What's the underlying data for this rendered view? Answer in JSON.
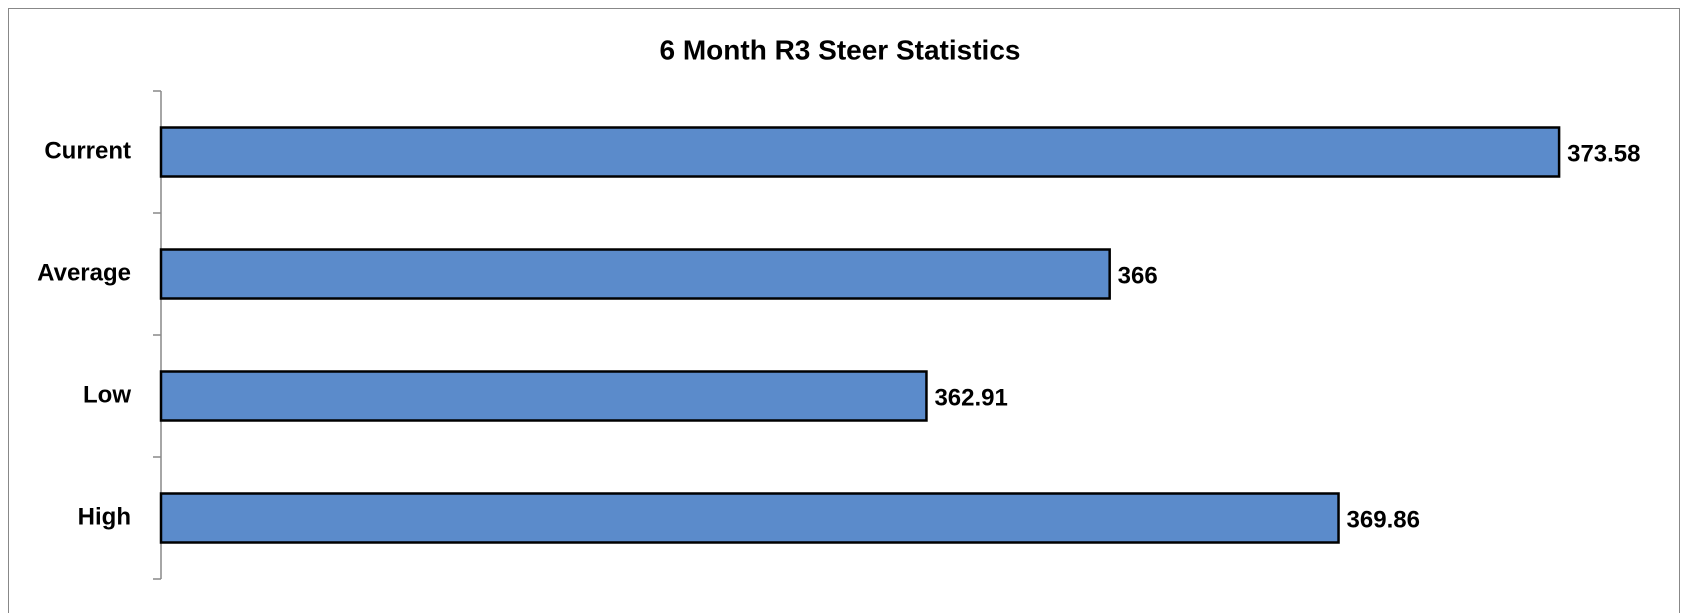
{
  "chart_data": {
    "type": "bar",
    "orientation": "horizontal",
    "title": "6 Month R3 Steer Statistics",
    "categories": [
      "Current",
      "Average",
      "Low",
      "High"
    ],
    "values": [
      373.58,
      366,
      362.91,
      369.86
    ],
    "color": "#5b8bcb",
    "xlim": [
      350,
      374
    ]
  }
}
